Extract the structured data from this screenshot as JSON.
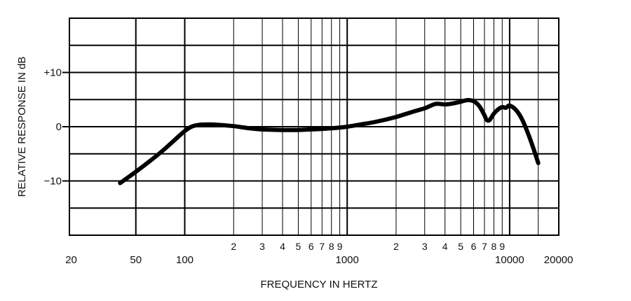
{
  "chart_data": {
    "type": "line",
    "title": "",
    "xlabel": "FREQUENCY IN HERTZ",
    "ylabel": "RELATIVE RESPONSE IN dB",
    "x_scale": "log",
    "xlim": [
      20,
      20000
    ],
    "ylim": [
      -20,
      20
    ],
    "grid": true,
    "legend": "none",
    "line_color": "#000000",
    "x_major_ticks": [
      {
        "value": 20,
        "label": "20"
      },
      {
        "value": 50,
        "label": "50"
      },
      {
        "value": 100,
        "label": "100"
      },
      {
        "value": 1000,
        "label": "1000"
      },
      {
        "value": 10000,
        "label": "10000"
      },
      {
        "value": 20000,
        "label": "20000"
      }
    ],
    "x_minor_ticks": [
      {
        "value": 200,
        "label": "2"
      },
      {
        "value": 300,
        "label": "3"
      },
      {
        "value": 400,
        "label": "4"
      },
      {
        "value": 500,
        "label": "5"
      },
      {
        "value": 600,
        "label": "6"
      },
      {
        "value": 700,
        "label": "7"
      },
      {
        "value": 800,
        "label": "8"
      },
      {
        "value": 900,
        "label": "9"
      },
      {
        "value": 2000,
        "label": "2"
      },
      {
        "value": 3000,
        "label": "3"
      },
      {
        "value": 4000,
        "label": "4"
      },
      {
        "value": 5000,
        "label": "5"
      },
      {
        "value": 6000,
        "label": "6"
      },
      {
        "value": 7000,
        "label": "7"
      },
      {
        "value": 8000,
        "label": "8"
      },
      {
        "value": 9000,
        "label": "9"
      }
    ],
    "x_gridlines": [
      50,
      100,
      200,
      300,
      400,
      500,
      600,
      700,
      800,
      900,
      1000,
      2000,
      3000,
      4000,
      5000,
      6000,
      7000,
      8000,
      9000,
      10000,
      15000
    ],
    "x_bold_gridlines": [
      50,
      100,
      1000,
      10000
    ],
    "y_ticks": [
      {
        "value": 10,
        "label": "+10"
      },
      {
        "value": 0,
        "label": "0"
      },
      {
        "value": -10,
        "label": "−10"
      }
    ],
    "y_gridlines": [
      -15,
      -10,
      -5,
      0,
      5,
      10,
      15
    ],
    "series": [
      {
        "name": "",
        "x": [
          40,
          50,
          60,
          70,
          80,
          90,
          100,
          110,
          120,
          130,
          150,
          200,
          250,
          300,
          400,
          500,
          600,
          700,
          800,
          1000,
          1200,
          1500,
          2000,
          2500,
          3000,
          3500,
          4000,
          4500,
          5000,
          5500,
          6000,
          6500,
          7000,
          7200,
          7500,
          8000,
          8500,
          9000,
          9500,
          10000,
          11000,
          12000,
          13000,
          14000,
          15000
        ],
        "y": [
          -10.4,
          -8.3,
          -6.5,
          -4.9,
          -3.4,
          -2.0,
          -0.8,
          0.0,
          0.3,
          0.4,
          0.4,
          0.1,
          -0.3,
          -0.5,
          -0.6,
          -0.6,
          -0.5,
          -0.4,
          -0.3,
          0.0,
          0.4,
          0.9,
          1.8,
          2.7,
          3.4,
          4.2,
          4.1,
          4.3,
          4.6,
          4.9,
          4.7,
          3.8,
          2.1,
          1.3,
          1.2,
          2.4,
          3.2,
          3.6,
          3.5,
          3.9,
          3.0,
          1.2,
          -1.3,
          -4.0,
          -6.7
        ]
      }
    ]
  }
}
